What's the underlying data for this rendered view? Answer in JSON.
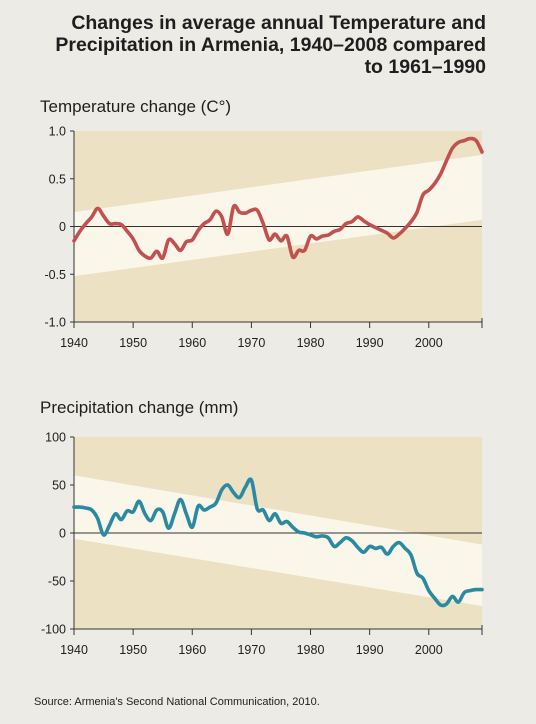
{
  "title_lines": [
    "Changes in average annual Temperature and",
    "Precipitation in Armenia, 1940–2008 compared",
    "to 1961–1990"
  ],
  "source": "Source: Armenia's Second National Communication, 2010.",
  "colors": {
    "background": "#ecebe6",
    "band_outer": "#ece1c2",
    "band_inner": "#faf6ea",
    "temperature_line": "#c2504f",
    "precipitation_line": "#2a8aa2",
    "axis": "#333333"
  },
  "chart_data": [
    {
      "type": "line",
      "title": "Temperature change (C°)",
      "xlim": [
        1940,
        2009
      ],
      "ylim": [
        -1.0,
        1.0
      ],
      "x_ticks": [
        1940,
        1950,
        1960,
        1970,
        1980,
        1990,
        2000
      ],
      "y_ticks": [
        {
          "value": 1.0,
          "label": "1.0"
        },
        {
          "value": 0.5,
          "label": "0.5"
        },
        {
          "value": 0,
          "label": "0"
        },
        {
          "value": -0.5,
          "label": "-0.5"
        },
        {
          "value": -1.0,
          "label": "-1.0"
        }
      ],
      "band": {
        "upper": [
          [
            1940,
            0.15
          ],
          [
            2009,
            0.75
          ]
        ],
        "lower": [
          [
            1940,
            -0.52
          ],
          [
            2009,
            0.07
          ]
        ]
      },
      "series": [
        {
          "x": [
            1940,
            1941,
            1942,
            1943,
            1944,
            1945,
            1946,
            1947,
            1948,
            1949,
            1950,
            1951,
            1952,
            1953,
            1954,
            1955,
            1956,
            1957,
            1958,
            1959,
            1960,
            1961,
            1962,
            1963,
            1964,
            1965,
            1966,
            1967,
            1968,
            1969,
            1970,
            1971,
            1972,
            1973,
            1974,
            1975,
            1976,
            1977,
            1978,
            1979,
            1980,
            1981,
            1982,
            1983,
            1984,
            1985,
            1986,
            1987,
            1988,
            1989,
            1990,
            1991,
            1992,
            1993,
            1994,
            1995,
            1996,
            1997,
            1998,
            1999,
            2000,
            2001,
            2002,
            2003,
            2004,
            2005,
            2006,
            2007,
            2008,
            2009
          ],
          "values": [
            -0.15,
            -0.05,
            0.03,
            0.1,
            0.19,
            0.11,
            0.03,
            0.03,
            0.02,
            -0.05,
            -0.13,
            -0.25,
            -0.31,
            -0.33,
            -0.26,
            -0.33,
            -0.14,
            -0.18,
            -0.25,
            -0.16,
            -0.14,
            -0.04,
            0.03,
            0.07,
            0.16,
            0.1,
            -0.08,
            0.21,
            0.15,
            0.14,
            0.17,
            0.17,
            0.03,
            -0.14,
            -0.08,
            -0.15,
            -0.1,
            -0.32,
            -0.25,
            -0.25,
            -0.1,
            -0.13,
            -0.1,
            -0.09,
            -0.05,
            -0.03,
            0.03,
            0.05,
            0.1,
            0.06,
            0.02,
            -0.01,
            -0.04,
            -0.07,
            -0.12,
            -0.08,
            -0.02,
            0.05,
            0.15,
            0.33,
            0.38,
            0.45,
            0.55,
            0.69,
            0.82,
            0.88,
            0.9,
            0.92,
            0.9,
            0.78
          ]
        }
      ]
    },
    {
      "type": "line",
      "title": "Precipitation change (mm)",
      "xlim": [
        1940,
        2009
      ],
      "ylim": [
        -100,
        100
      ],
      "x_ticks": [
        1940,
        1950,
        1960,
        1970,
        1980,
        1990,
        2000
      ],
      "y_ticks": [
        {
          "value": 100,
          "label": "100"
        },
        {
          "value": 50,
          "label": "50"
        },
        {
          "value": 0,
          "label": "0"
        },
        {
          "value": -50,
          "label": "-50"
        },
        {
          "value": -100,
          "label": "-100"
        }
      ],
      "band": {
        "upper": [
          [
            1940,
            60
          ],
          [
            2009,
            -12
          ]
        ],
        "lower": [
          [
            1940,
            -6
          ],
          [
            2009,
            -76
          ]
        ]
      },
      "series": [
        {
          "x": [
            1940,
            1941,
            1942,
            1943,
            1944,
            1945,
            1946,
            1947,
            1948,
            1949,
            1950,
            1951,
            1952,
            1953,
            1954,
            1955,
            1956,
            1957,
            1958,
            1959,
            1960,
            1961,
            1962,
            1963,
            1964,
            1965,
            1966,
            1967,
            1968,
            1969,
            1970,
            1971,
            1972,
            1973,
            1974,
            1975,
            1976,
            1977,
            1978,
            1979,
            1980,
            1981,
            1982,
            1983,
            1984,
            1985,
            1986,
            1987,
            1988,
            1989,
            1990,
            1991,
            1992,
            1993,
            1994,
            1995,
            1996,
            1997,
            1998,
            1999,
            2000,
            2001,
            2002,
            2003,
            2004,
            2005,
            2006,
            2007,
            2008,
            2009
          ],
          "values": [
            27,
            27,
            26,
            24,
            15,
            -2,
            8,
            20,
            14,
            23,
            22,
            33,
            20,
            13,
            24,
            22,
            5,
            20,
            35,
            20,
            6,
            28,
            24,
            27,
            31,
            45,
            50,
            42,
            37,
            48,
            55,
            25,
            24,
            13,
            20,
            10,
            12,
            6,
            1,
            0,
            -2,
            -4,
            -3,
            -5,
            -14,
            -10,
            -5,
            -8,
            -15,
            -20,
            -14,
            -16,
            -15,
            -22,
            -14,
            -10,
            -16,
            -23,
            -42,
            -47,
            -60,
            -68,
            -75,
            -74,
            -66,
            -72,
            -62,
            -60,
            -59,
            -59
          ]
        }
      ]
    }
  ]
}
